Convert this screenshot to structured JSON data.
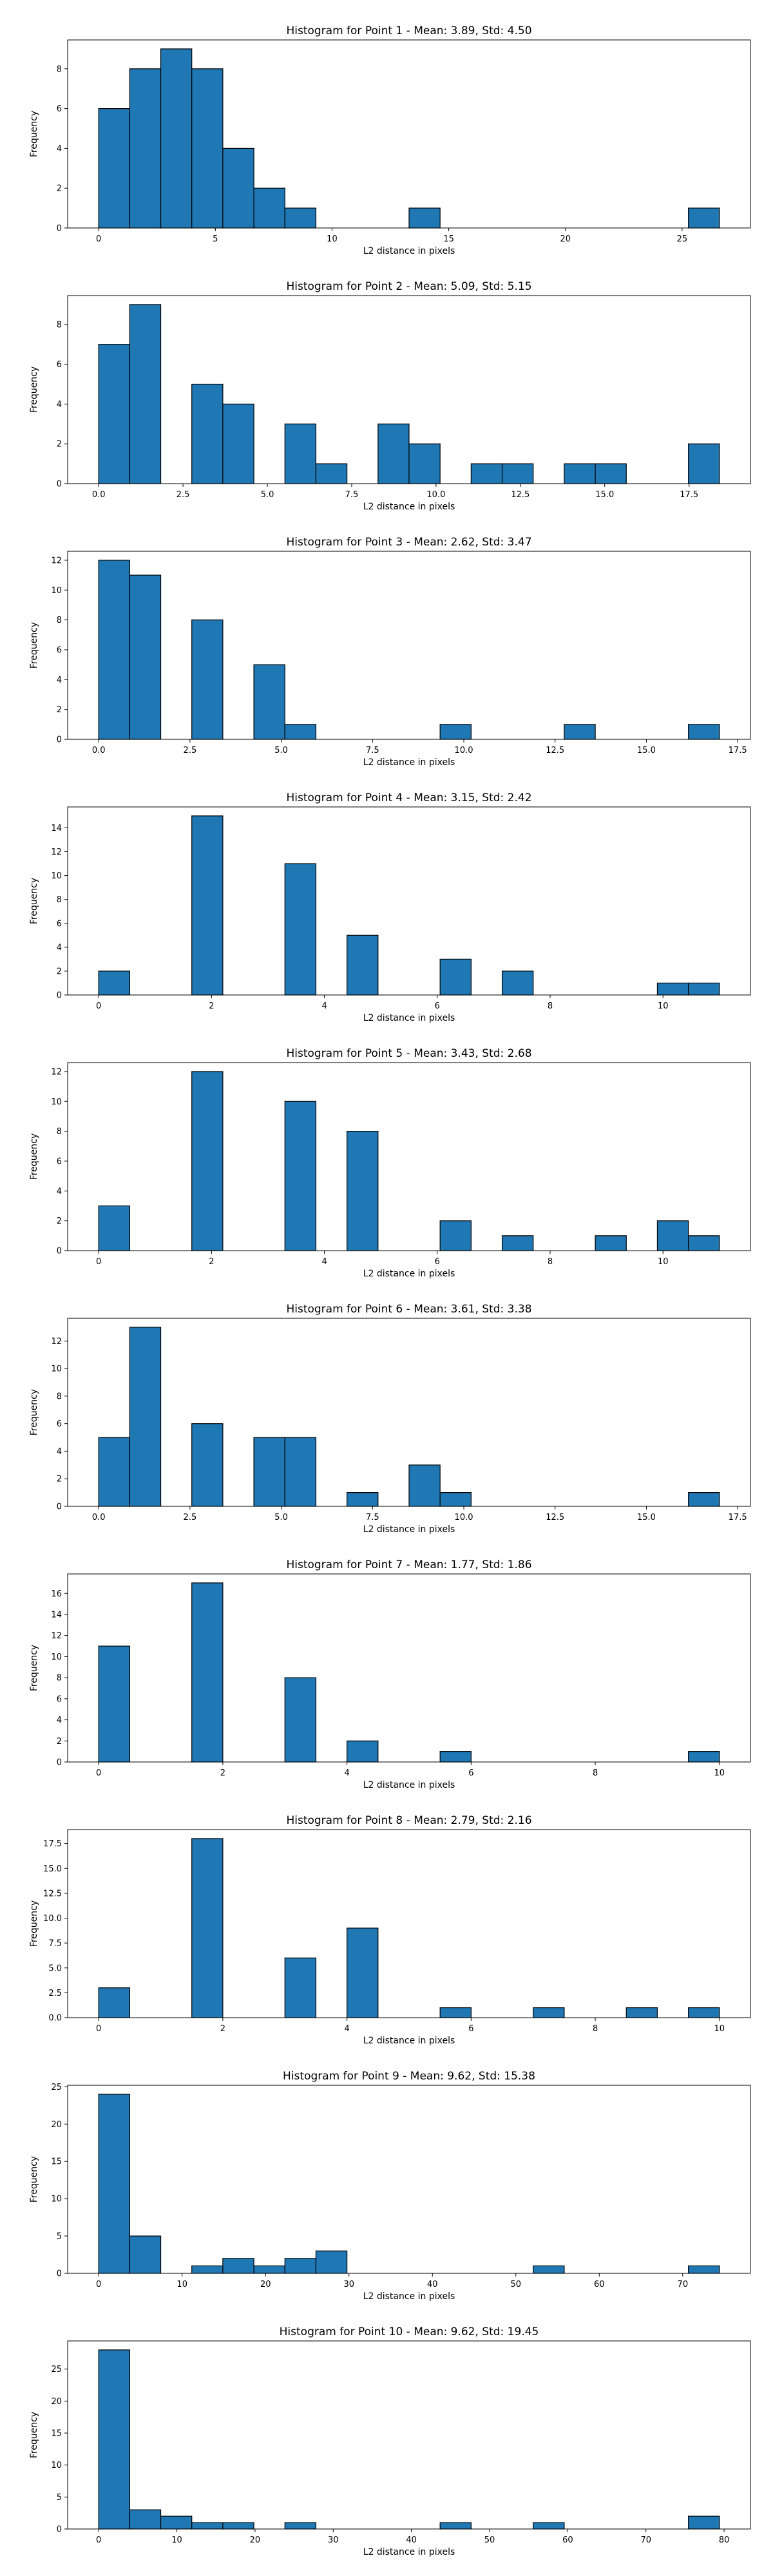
{
  "chart_data": [
    {
      "type": "bar",
      "title": "Histogram for Point 1 - Mean: 3.89, Std: 4.50",
      "xlabel": "L2 distance in pixels",
      "ylabel": "Frequency",
      "xlim": [
        -1.33,
        27.93
      ],
      "ylim": [
        0,
        9.45
      ],
      "xticks": [
        0,
        5,
        10,
        15,
        20,
        25
      ],
      "yticks": [
        0,
        2,
        4,
        6,
        8
      ],
      "xtick_labels": [
        "0",
        "5",
        "10",
        "15",
        "20",
        "25"
      ],
      "ytick_labels": [
        "0",
        "2",
        "4",
        "6",
        "8"
      ],
      "bin_start": 0.0,
      "bin_width": 1.33,
      "counts": [
        6,
        8,
        9,
        8,
        4,
        2,
        1,
        0,
        0,
        0,
        1,
        0,
        0,
        0,
        0,
        0,
        0,
        0,
        0,
        1
      ]
    },
    {
      "type": "bar",
      "title": "Histogram for Point 2 - Mean: 5.09, Std: 5.15",
      "xlabel": "L2 distance in pixels",
      "ylabel": "Frequency",
      "xlim": [
        -0.92,
        19.32
      ],
      "ylim": [
        0,
        9.45
      ],
      "xticks": [
        0,
        2.5,
        5,
        7.5,
        10,
        12.5,
        15,
        17.5
      ],
      "yticks": [
        0,
        2,
        4,
        6,
        8
      ],
      "xtick_labels": [
        "0.0",
        "2.5",
        "5.0",
        "7.5",
        "10.0",
        "12.5",
        "15.0",
        "17.5"
      ],
      "ytick_labels": [
        "0",
        "2",
        "4",
        "6",
        "8"
      ],
      "bin_start": 0.0,
      "bin_width": 0.92,
      "counts": [
        7,
        9,
        0,
        5,
        4,
        0,
        3,
        1,
        0,
        3,
        2,
        0,
        1,
        1,
        0,
        1,
        1,
        0,
        0,
        2
      ]
    },
    {
      "type": "bar",
      "title": "Histogram for Point 3 - Mean: 2.62, Std: 3.47",
      "xlabel": "L2 distance in pixels",
      "ylabel": "Frequency",
      "xlim": [
        -0.85,
        17.85
      ],
      "ylim": [
        0,
        12.6
      ],
      "xticks": [
        0,
        2.5,
        5,
        7.5,
        10,
        12.5,
        15,
        17.5
      ],
      "yticks": [
        0,
        2,
        4,
        6,
        8,
        10,
        12
      ],
      "xtick_labels": [
        "0.0",
        "2.5",
        "5.0",
        "7.5",
        "10.0",
        "12.5",
        "15.0",
        "17.5"
      ],
      "ytick_labels": [
        "0",
        "2",
        "4",
        "6",
        "8",
        "10",
        "12"
      ],
      "bin_start": 0.0,
      "bin_width": 0.85,
      "counts": [
        12,
        11,
        0,
        8,
        0,
        5,
        1,
        0,
        0,
        0,
        0,
        1,
        0,
        0,
        0,
        1,
        0,
        0,
        0,
        1
      ]
    },
    {
      "type": "bar",
      "title": "Histogram for Point 4 - Mean: 3.15, Std: 2.42",
      "xlabel": "L2 distance in pixels",
      "ylabel": "Frequency",
      "xlim": [
        -0.55,
        11.55
      ],
      "ylim": [
        0,
        15.75
      ],
      "xticks": [
        0,
        2,
        4,
        6,
        8,
        10
      ],
      "yticks": [
        0,
        2,
        4,
        6,
        8,
        10,
        12,
        14
      ],
      "xtick_labels": [
        "0",
        "2",
        "4",
        "6",
        "8",
        "10"
      ],
      "ytick_labels": [
        "0",
        "2",
        "4",
        "6",
        "8",
        "10",
        "12",
        "14"
      ],
      "bin_start": 0.0,
      "bin_width": 0.55,
      "counts": [
        2,
        0,
        0,
        15,
        0,
        0,
        11,
        0,
        5,
        0,
        0,
        3,
        0,
        2,
        0,
        0,
        0,
        0,
        1,
        1
      ]
    },
    {
      "type": "bar",
      "title": "Histogram for Point 5 - Mean: 3.43, Std: 2.68",
      "xlabel": "L2 distance in pixels",
      "ylabel": "Frequency",
      "xlim": [
        -0.55,
        11.55
      ],
      "ylim": [
        0,
        12.6
      ],
      "xticks": [
        0,
        2,
        4,
        6,
        8,
        10
      ],
      "yticks": [
        0,
        2,
        4,
        6,
        8,
        10,
        12
      ],
      "xtick_labels": [
        "0",
        "2",
        "4",
        "6",
        "8",
        "10"
      ],
      "ytick_labels": [
        "0",
        "2",
        "4",
        "6",
        "8",
        "10",
        "12"
      ],
      "bin_start": 0.0,
      "bin_width": 0.55,
      "counts": [
        3,
        0,
        0,
        12,
        0,
        0,
        10,
        0,
        8,
        0,
        0,
        2,
        0,
        1,
        0,
        0,
        1,
        0,
        2,
        1
      ]
    },
    {
      "type": "bar",
      "title": "Histogram for Point 6 - Mean: 3.61, Std: 3.38",
      "xlabel": "L2 distance in pixels",
      "ylabel": "Frequency",
      "xlim": [
        -0.85,
        17.85
      ],
      "ylim": [
        0,
        13.65
      ],
      "xticks": [
        0,
        2.5,
        5,
        7.5,
        10,
        12.5,
        15,
        17.5
      ],
      "yticks": [
        0,
        2,
        4,
        6,
        8,
        10,
        12
      ],
      "xtick_labels": [
        "0.0",
        "2.5",
        "5.0",
        "7.5",
        "10.0",
        "12.5",
        "15.0",
        "17.5"
      ],
      "ytick_labels": [
        "0",
        "2",
        "4",
        "6",
        "8",
        "10",
        "12"
      ],
      "bin_start": 0.0,
      "bin_width": 0.85,
      "counts": [
        5,
        13,
        0,
        6,
        0,
        5,
        5,
        0,
        1,
        0,
        3,
        1,
        0,
        0,
        0,
        0,
        0,
        0,
        0,
        1
      ]
    },
    {
      "type": "bar",
      "title": "Histogram for Point 7 - Mean: 1.77, Std: 1.86",
      "xlabel": "L2 distance in pixels",
      "ylabel": "Frequency",
      "xlim": [
        -0.5,
        10.5
      ],
      "ylim": [
        0,
        17.85
      ],
      "xticks": [
        0,
        2,
        4,
        6,
        8,
        10
      ],
      "yticks": [
        0,
        2,
        4,
        6,
        8,
        10,
        12,
        14,
        16
      ],
      "xtick_labels": [
        "0",
        "2",
        "4",
        "6",
        "8",
        "10"
      ],
      "ytick_labels": [
        "0",
        "2",
        "4",
        "6",
        "8",
        "10",
        "12",
        "14",
        "16"
      ],
      "bin_start": 0.0,
      "bin_width": 0.5,
      "counts": [
        11,
        0,
        0,
        17,
        0,
        0,
        8,
        0,
        2,
        0,
        0,
        1,
        0,
        0,
        0,
        0,
        0,
        0,
        0,
        1
      ]
    },
    {
      "type": "bar",
      "title": "Histogram for Point 8 - Mean: 2.79, Std: 2.16",
      "xlabel": "L2 distance in pixels",
      "ylabel": "Frequency",
      "xlim": [
        -0.5,
        10.5
      ],
      "ylim": [
        0,
        18.9
      ],
      "xticks": [
        0,
        2,
        4,
        6,
        8,
        10
      ],
      "yticks": [
        0,
        2.5,
        5,
        7.5,
        10,
        12.5,
        15,
        17.5
      ],
      "xtick_labels": [
        "0",
        "2",
        "4",
        "6",
        "8",
        "10"
      ],
      "ytick_labels": [
        "0.0",
        "2.5",
        "5.0",
        "7.5",
        "10.0",
        "12.5",
        "15.0",
        "17.5"
      ],
      "bin_start": 0.0,
      "bin_width": 0.5,
      "counts": [
        3,
        0,
        0,
        18,
        0,
        0,
        6,
        0,
        9,
        0,
        0,
        1,
        0,
        0,
        1,
        0,
        0,
        1,
        0,
        1
      ]
    },
    {
      "type": "bar",
      "title": "Histogram for Point 9 - Mean: 9.62, Std: 15.38",
      "xlabel": "L2 distance in pixels",
      "ylabel": "Frequency",
      "xlim": [
        -3.72,
        78.12
      ],
      "ylim": [
        0,
        25.2
      ],
      "xticks": [
        0,
        10,
        20,
        30,
        40,
        50,
        60,
        70
      ],
      "yticks": [
        0,
        5,
        10,
        15,
        20,
        25
      ],
      "xtick_labels": [
        "0",
        "10",
        "20",
        "30",
        "40",
        "50",
        "60",
        "70"
      ],
      "ytick_labels": [
        "0",
        "5",
        "10",
        "15",
        "20",
        "25"
      ],
      "bin_start": 0.0,
      "bin_width": 3.72,
      "counts": [
        24,
        5,
        0,
        1,
        2,
        1,
        2,
        3,
        0,
        0,
        0,
        0,
        0,
        0,
        1,
        0,
        0,
        0,
        0,
        1
      ]
    },
    {
      "type": "bar",
      "title": "Histogram for Point 10 - Mean: 9.62, Std: 19.45",
      "xlabel": "L2 distance in pixels",
      "ylabel": "Frequency",
      "xlim": [
        -3.97,
        83.37
      ],
      "ylim": [
        0,
        29.4
      ],
      "xticks": [
        0,
        10,
        20,
        30,
        40,
        50,
        60,
        70,
        80
      ],
      "yticks": [
        0,
        5,
        10,
        15,
        20,
        25
      ],
      "xtick_labels": [
        "0",
        "10",
        "20",
        "30",
        "40",
        "50",
        "60",
        "70",
        "80"
      ],
      "ytick_labels": [
        "0",
        "5",
        "10",
        "15",
        "20",
        "25"
      ],
      "bin_start": 0.0,
      "bin_width": 3.97,
      "counts": [
        28,
        3,
        2,
        1,
        1,
        0,
        1,
        0,
        0,
        0,
        0,
        1,
        0,
        0,
        1,
        0,
        0,
        0,
        0,
        2
      ]
    }
  ]
}
